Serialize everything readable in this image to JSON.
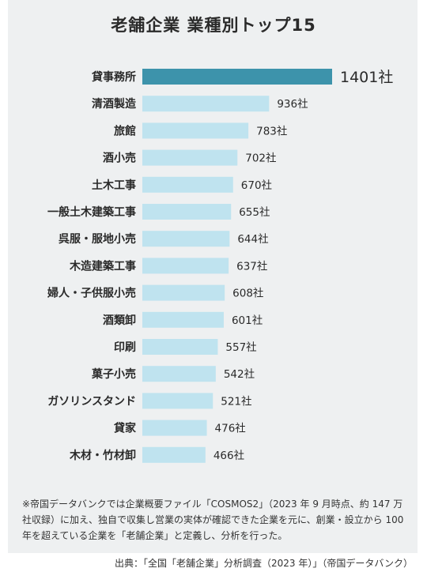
{
  "chart_data": {
    "type": "bar",
    "orientation": "horizontal",
    "title": "老舗企業 業種別トップ15",
    "categories": [
      "貸事務所",
      "清酒製造",
      "旅館",
      "酒小売",
      "土木工事",
      "一般土木建築工事",
      "呉服・服地小売",
      "木造建築工事",
      "婦人・子供服小売",
      "酒類卸",
      "印刷",
      "菓子小売",
      "ガソリンスタンド",
      "貸家",
      "木材・竹材卸"
    ],
    "values": [
      1401,
      936,
      783,
      702,
      670,
      655,
      644,
      637,
      608,
      601,
      557,
      542,
      521,
      476,
      466
    ],
    "value_labels": [
      "1401社",
      "936社",
      "783社",
      "702社",
      "670社",
      "655社",
      "644社",
      "637社",
      "608社",
      "601社",
      "557社",
      "542社",
      "521社",
      "476社",
      "466社"
    ],
    "unit": "社",
    "highlight_color": "#3d93ab",
    "bar_color": "#bfe3ef"
  },
  "footnote": "※帝国データバンクでは企業概要ファイル「COSMOS2」（2023 年 9 月時点、約 147 万社収録）に加え、独自で収集し営業の実体が確認できた企業を元に、創業・設立から 100 年を超えている企業を「老舗企業」と定義し、分析を行った。",
  "source": "出典：「全国「老舗企業」分析調査（2023 年）」（帝国データバンク）"
}
